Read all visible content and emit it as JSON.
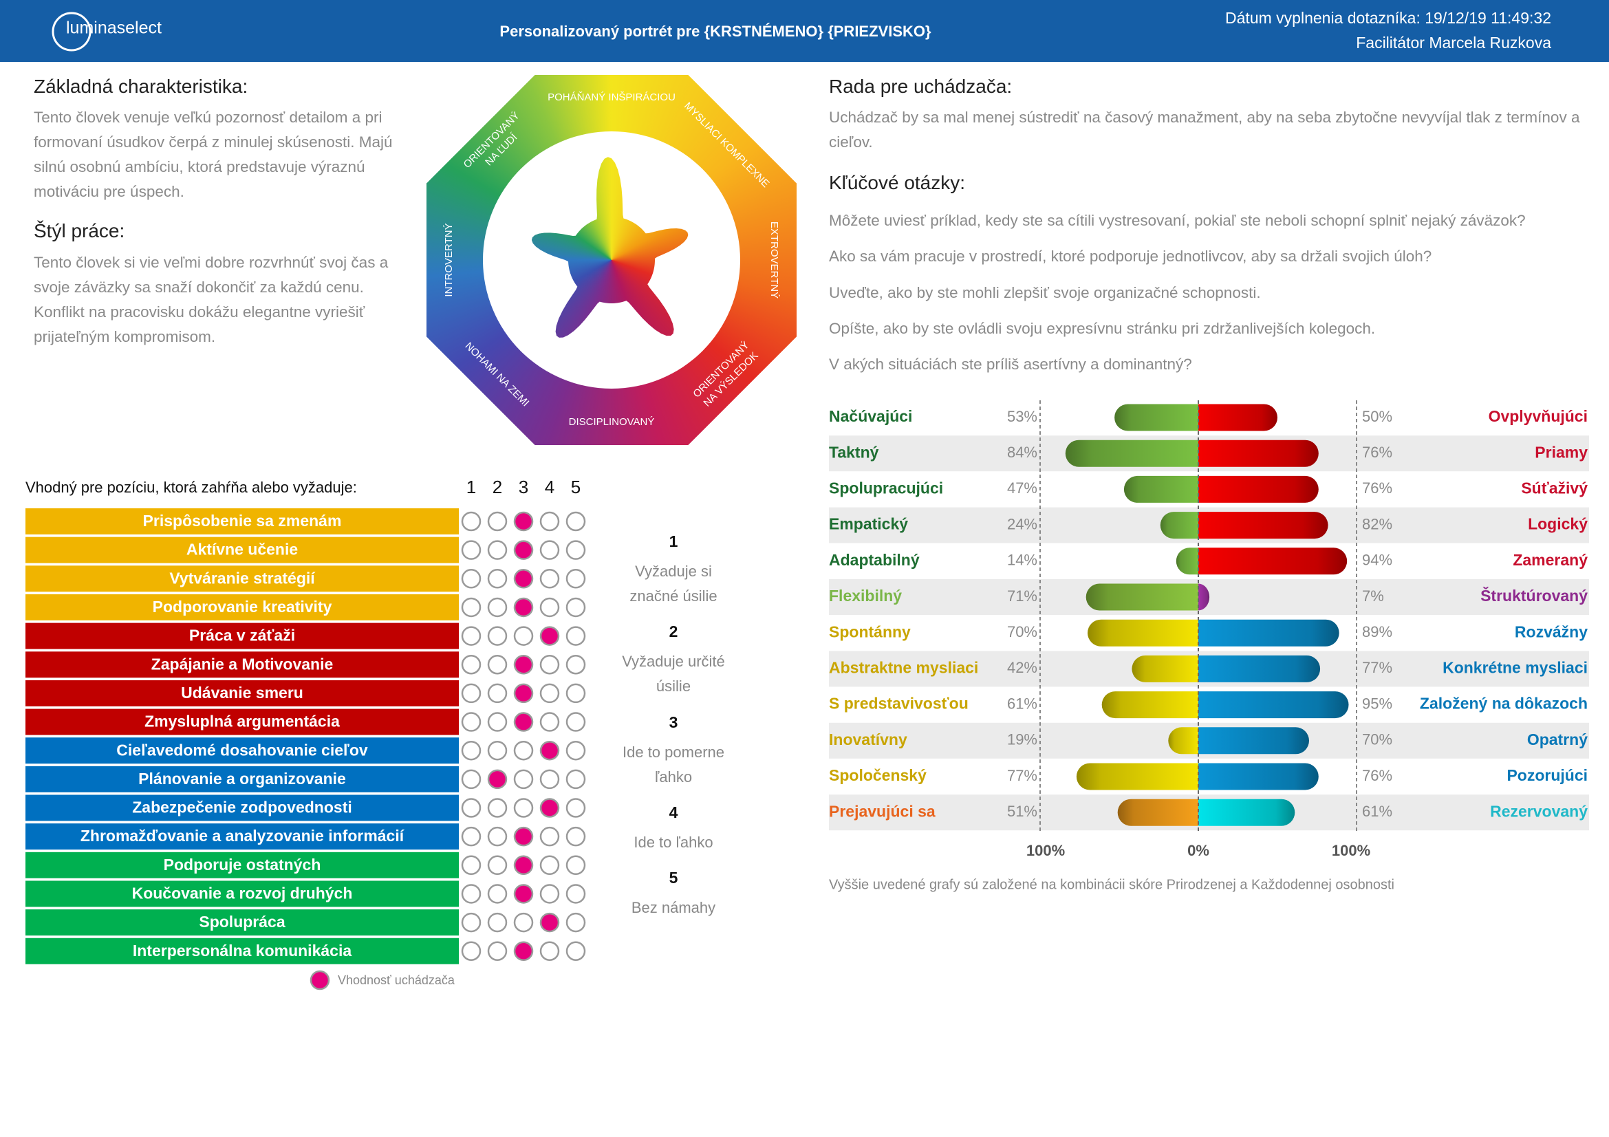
{
  "header": {
    "logo": "luminaselect",
    "title": "Personalizovaný portrét pre {KRSTNÉMENO} {PRIEZVISKO}",
    "date": "Dátum vyplnenia dotazníka: 19/12/19 11:49:32",
    "facilitator": "Facilitátor Marcela Ruzkova"
  },
  "basic": {
    "heading": "Základná charakteristika:",
    "text": "Tento človek venuje veľkú pozornosť detailom a pri formovaní úsudkov čerpá z minulej skúsenosti. Majú silnú osobnú ambíciu, ktorá predstavuje výraznú motiváciu pre úspech."
  },
  "work_style": {
    "heading": "Štýl práce:",
    "text": "Tento človek si vie veľmi dobre rozvrhnúť svoj čas a svoje záväzky sa snaží dokončiť za každú cenu. Konflikt na pracovisku dokážu elegantne vyriešiť prijateľným kompromisom."
  },
  "advice": {
    "heading": "Rada pre uchádzača:",
    "text": "Uchádzač by sa mal menej sústrediť na časový manažment, aby na seba zbytočne nevyvíjal tlak z termínov a cieľov."
  },
  "questions": {
    "heading": "Kľúčové otázky:",
    "items": [
      "Môžete uviesť príklad, kedy ste sa cítili vystresovaní, pokiaľ ste neboli schopní splniť nejaký záväzok?",
      "Ako sa vám pracuje v prostredí, ktoré podporuje jednotlivcov, aby sa držali svojich úloh?",
      "Uveďte, ako by ste mohli zlepšiť svoje organizačné schopnosti.",
      "Opíšte, ako by ste ovládli svoju expresívnu stránku pri zdržanlivejších kolegoch.",
      "V akých situáciách ste príliš asertívny a dominantný?"
    ]
  },
  "wheel": {
    "labels": [
      [
        "POHÁŇANÝ INŠPIRÁCIOU"
      ],
      [
        "MYSLIACI KOMPLEXNE"
      ],
      [
        "EXTROVERTNÝ"
      ],
      [
        "ORIENTOVANÝ",
        "NA VÝSLEDOK"
      ],
      [
        "DISCIPLINOVANÝ"
      ],
      [
        "NOHAMI NA ZEMI"
      ],
      [
        "INTROVERTNÝ"
      ],
      [
        "ORIENTOVANÝ",
        "NA ĽUDÍ"
      ]
    ]
  },
  "competencies": {
    "heading": "Vhodný pre pozíciu, ktorá zahŕňa alebo vyžaduje:",
    "scale": [
      1,
      2,
      3,
      4,
      5
    ],
    "selected_color": "#e6007e",
    "rows": [
      {
        "label": "Prispôsobenie sa zmenám",
        "color": "#f0b400",
        "rating": 3
      },
      {
        "label": "Aktívne učenie",
        "color": "#f0b400",
        "rating": 3
      },
      {
        "label": "Vytváranie stratégií",
        "color": "#f0b400",
        "rating": 3
      },
      {
        "label": "Podporovanie kreativity",
        "color": "#f0b400",
        "rating": 3
      },
      {
        "label": "Práca v záťaži",
        "color": "#c00000",
        "rating": 4
      },
      {
        "label": "Zapájanie a Motivovanie",
        "color": "#c00000",
        "rating": 3
      },
      {
        "label": "Udávanie smeru",
        "color": "#c00000",
        "rating": 3
      },
      {
        "label": "Zmysluplná argumentácia",
        "color": "#c00000",
        "rating": 3
      },
      {
        "label": "Cieľavedomé dosahovanie cieľov",
        "color": "#0070c0",
        "rating": 4
      },
      {
        "label": "Plánovanie a organizovanie",
        "color": "#0070c0",
        "rating": 2
      },
      {
        "label": "Zabezpečenie zodpovednosti",
        "color": "#0070c0",
        "rating": 4
      },
      {
        "label": "Zhromažďovanie a analyzovanie informácií",
        "color": "#0070c0",
        "rating": 3
      },
      {
        "label": "Podporuje ostatných",
        "color": "#00b050",
        "rating": 3
      },
      {
        "label": "Koučovanie a rozvoj druhých",
        "color": "#00b050",
        "rating": 3
      },
      {
        "label": "Spolupráca",
        "color": "#00b050",
        "rating": 4
      },
      {
        "label": "Interpersonálna komunikácia",
        "color": "#00b050",
        "rating": 3
      }
    ],
    "legend": "Vhodnosť uchádzača",
    "key": [
      {
        "level": 1,
        "text": [
          "Vyžaduje si",
          "značné úsilie"
        ]
      },
      {
        "level": 2,
        "text": [
          "Vyžaduje určité",
          "úsilie"
        ]
      },
      {
        "level": 3,
        "text": [
          "Ide to pomerne",
          "ľahko"
        ]
      },
      {
        "level": 4,
        "text": [
          "Ide to ľahko"
        ]
      },
      {
        "level": 5,
        "text": [
          "Bez námahy"
        ]
      }
    ]
  },
  "traits": {
    "xlim": [
      -100,
      100
    ],
    "xticks": [
      {
        "value": -100,
        "label": "100%"
      },
      {
        "value": 0,
        "label": "0%"
      },
      {
        "value": 100,
        "label": "100%"
      }
    ],
    "rows": [
      {
        "left": "Načúvajúci",
        "left_value": 53,
        "left_value_label": "53%",
        "left_color": "#1e6e32",
        "left_bar": "#7ac142",
        "right": "Ovplyvňujúci",
        "right_value": 50,
        "right_value_label": "50%",
        "right_color": "#c8102e",
        "right_bar": "#f50000"
      },
      {
        "left": "Taktný",
        "left_value": 84,
        "left_value_label": "84%",
        "left_color": "#1e6e32",
        "left_bar": "#7ac142",
        "right": "Priamy",
        "right_value": 76,
        "right_value_label": "76%",
        "right_color": "#c8102e",
        "right_bar": "#f50000"
      },
      {
        "left": "Spolupracujúci",
        "left_value": 47,
        "left_value_label": "47%",
        "left_color": "#1e6e32",
        "left_bar": "#7ac142",
        "right": "Súťaživý",
        "right_value": 76,
        "right_value_label": "76%",
        "right_color": "#c8102e",
        "right_bar": "#f50000"
      },
      {
        "left": "Empatický",
        "left_value": 24,
        "left_value_label": "24%",
        "left_color": "#1e6e32",
        "left_bar": "#7ac142",
        "right": "Logický",
        "right_value": 82,
        "right_value_label": "82%",
        "right_color": "#c8102e",
        "right_bar": "#f50000"
      },
      {
        "left": "Adaptabilný",
        "left_value": 14,
        "left_value_label": "14%",
        "left_color": "#1e6e32",
        "left_bar": "#7ac142",
        "right": "Zameraný",
        "right_value": 94,
        "right_value_label": "94%",
        "right_color": "#c8102e",
        "right_bar": "#f50000"
      },
      {
        "left": "Flexibilný",
        "left_value": 71,
        "left_value_label": "71%",
        "left_color": "#7ab648",
        "left_bar": "#8cc63f",
        "right": "Štruktúrovaný",
        "right_value": 7,
        "right_value_label": "7%",
        "right_color": "#8e2a8e",
        "right_bar": "#a433a8"
      },
      {
        "left": "Spontánny",
        "left_value": 70,
        "left_value_label": "70%",
        "left_color": "#c9a500",
        "left_bar": "#f5e400",
        "right": "Rozvážny",
        "right_value": 89,
        "right_value_label": "89%",
        "right_color": "#0a78b8",
        "right_bar": "#0a95d6"
      },
      {
        "left": "Abstraktne mysliaci",
        "left_value": 42,
        "left_value_label": "42%",
        "left_color": "#c9a500",
        "left_bar": "#f5e400",
        "right": "Konkrétne mysliaci",
        "right_value": 77,
        "right_value_label": "77%",
        "right_color": "#0a78b8",
        "right_bar": "#0a95d6"
      },
      {
        "left": "S predstavivosťou",
        "left_value": 61,
        "left_value_label": "61%",
        "left_color": "#c9a500",
        "left_bar": "#f5e400",
        "right": "Založený na dôkazoch",
        "right_value": 95,
        "right_value_label": "95%",
        "right_color": "#0a78b8",
        "right_bar": "#0a95d6"
      },
      {
        "left": "Inovatívny",
        "left_value": 19,
        "left_value_label": "19%",
        "left_color": "#c9a500",
        "left_bar": "#f5e400",
        "right": "Opatrný",
        "right_value": 70,
        "right_value_label": "70%",
        "right_color": "#0a78b8",
        "right_bar": "#0a95d6"
      },
      {
        "left": "Spoločenský",
        "left_value": 77,
        "left_value_label": "77%",
        "left_color": "#c9a500",
        "left_bar": "#f5e400",
        "right": "Pozorujúci",
        "right_value": 76,
        "right_value_label": "76%",
        "right_color": "#0a78b8",
        "right_bar": "#0a95d6"
      },
      {
        "left": "Prejavujúci sa",
        "left_value": 51,
        "left_value_label": "51%",
        "left_color": "#e8641e",
        "left_bar": "#f6a01a",
        "right": "Rezervovaný",
        "right_value": 61,
        "right_value_label": "61%",
        "right_color": "#20b8c8",
        "right_bar": "#00e3ea"
      }
    ],
    "note": "Vyššie uvedené grafy sú založené na kombinácii skóre Prirodzenej a Každodennej osobnosti"
  }
}
